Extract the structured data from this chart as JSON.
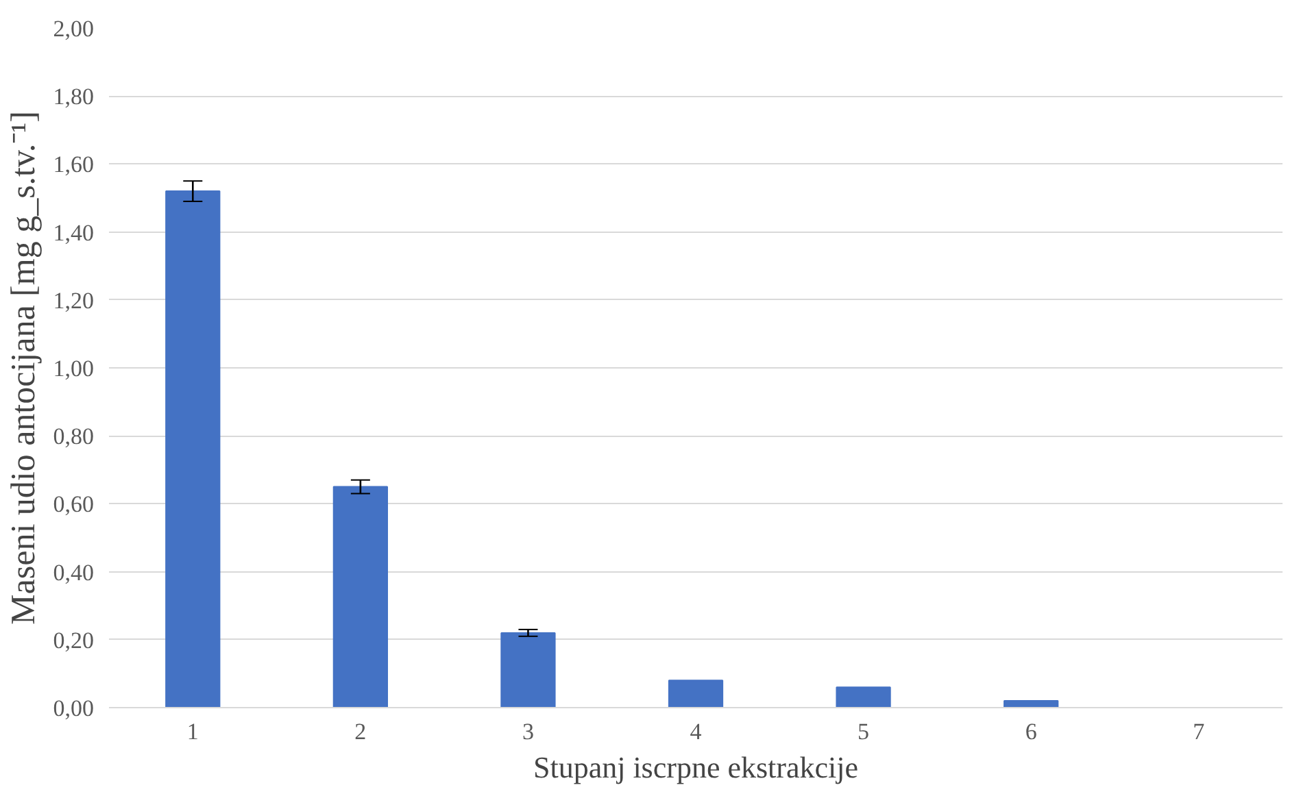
{
  "chart_data": {
    "type": "bar",
    "xlabel": "Stupanj iscrpne ekstrakcije",
    "ylabel": "Maseni udio antocijana [mg g_s.tv.⁻¹]",
    "categories": [
      "1",
      "2",
      "3",
      "4",
      "5",
      "6",
      "7"
    ],
    "values": [
      1.52,
      0.65,
      0.22,
      0.08,
      0.06,
      0.02,
      0
    ],
    "errors": [
      0.03,
      0.02,
      0.01,
      null,
      null,
      null,
      null
    ],
    "color": "#4472c4",
    "ylim": [
      0,
      2
    ],
    "yticks": [
      {
        "value": 0,
        "label": "0,00"
      },
      {
        "value": 0.2,
        "label": "0,20"
      },
      {
        "value": 0.4,
        "label": "0,40"
      },
      {
        "value": 0.6,
        "label": "0,60"
      },
      {
        "value": 0.8,
        "label": "0,80"
      },
      {
        "value": 1.0,
        "label": "1,00"
      },
      {
        "value": 1.2,
        "label": "1,20"
      },
      {
        "value": 1.4,
        "label": "1,40"
      },
      {
        "value": 1.6,
        "label": "1,60"
      },
      {
        "value": 1.8,
        "label": "1,80"
      },
      {
        "value": 2.0,
        "label": "2,00"
      }
    ],
    "grid": "y"
  }
}
